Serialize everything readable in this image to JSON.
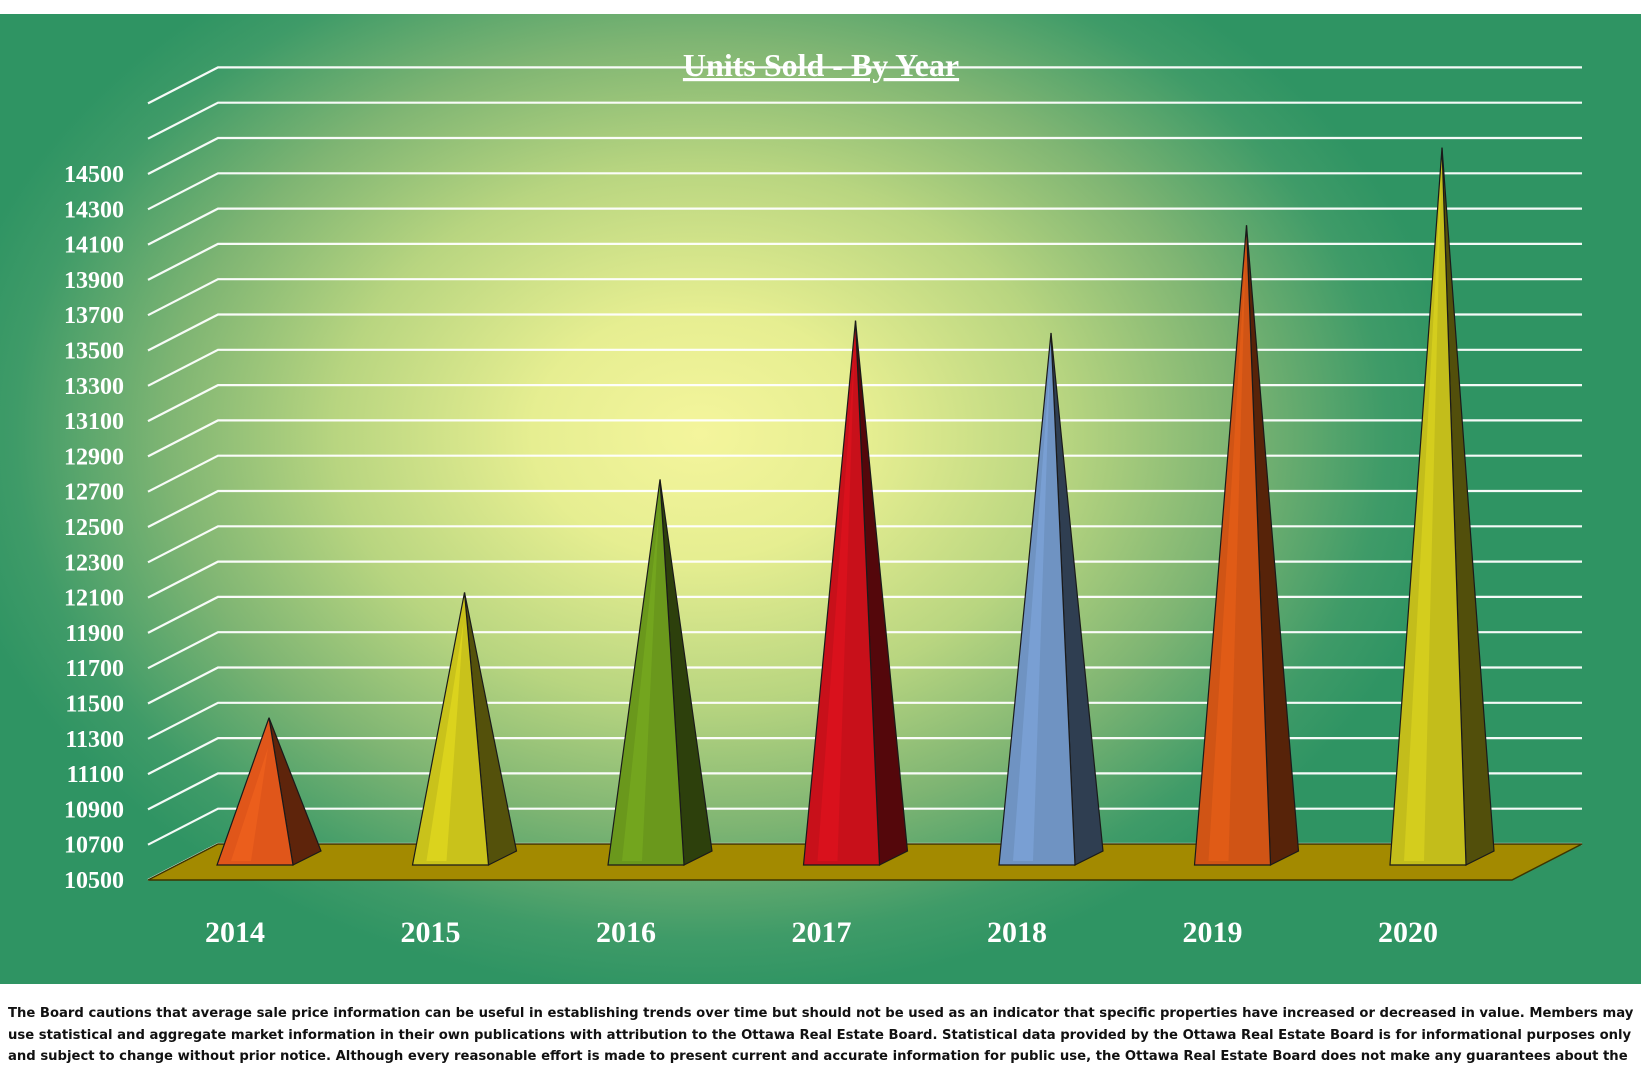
{
  "chart_data": {
    "type": "bar",
    "style": "3d-pyramid",
    "title": "Units Sold - By Year",
    "categories": [
      "2014",
      "2015",
      "2016",
      "2017",
      "2018",
      "2019",
      "2020"
    ],
    "values": [
      11340,
      12050,
      12690,
      13590,
      13520,
      14130,
      14570
    ],
    "colors": [
      "#e0561a",
      "#c9c21b",
      "#6a981c",
      "#c8101a",
      "#6f93c2",
      "#d05415",
      "#c3bd1b"
    ],
    "y_ticks": [
      "14500",
      "14300",
      "14100",
      "13900",
      "13700",
      "13500",
      "13300",
      "13100",
      "12900",
      "12700",
      "12500",
      "12300",
      "12100",
      "11900",
      "11700",
      "11500",
      "11300",
      "11100",
      "10900",
      "10700",
      "10500"
    ],
    "ylim": [
      10500,
      14500
    ],
    "grid": true,
    "legend": "none",
    "floor_color": "#a38a00",
    "background": "green-yellow radial gradient"
  },
  "disclaimer": "The Board cautions that average sale price information can be useful in establishing trends over time but should not be used as an indicator that specific properties have increased or decreased in value.  Members may use statistical and aggregate market information in their own publications with attribution to the Ottawa Real Estate Board. Statistical data provided by the Ottawa Real Estate Board is for informational purposes only and subject to change without prior notice. Although every reasonable effort is made to present current and accurate information for public use, the Ottawa Real Estate Board does not make any guarantees about the"
}
